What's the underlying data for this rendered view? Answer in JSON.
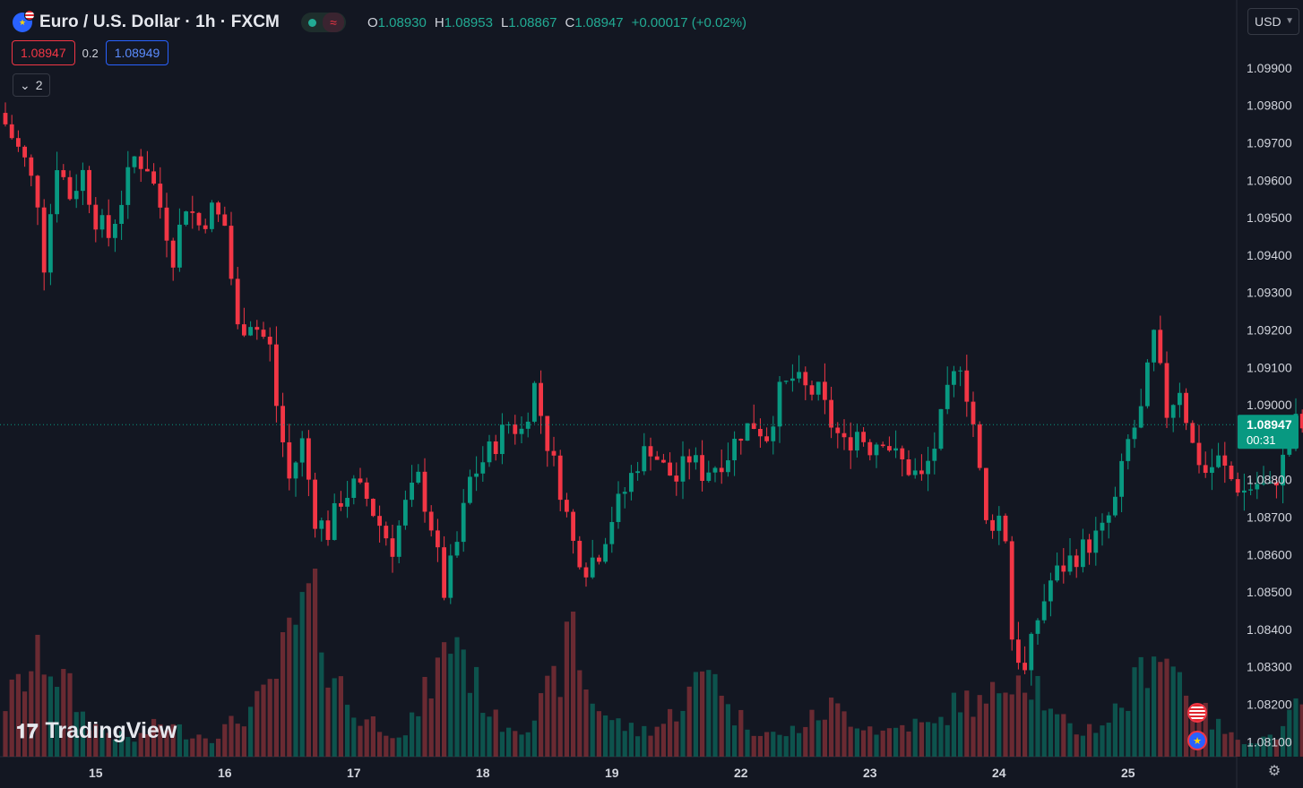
{
  "header": {
    "symbol_title": "Euro / U.S. Dollar · 1h · FXCM",
    "ohlc": {
      "o_label": "O",
      "o": "1.08930",
      "h_label": "H",
      "h": "1.08953",
      "l_label": "L",
      "l": "1.08867",
      "c_label": "C",
      "c": "1.08947",
      "change": "+0.00017 (+0.02%)"
    }
  },
  "quote": {
    "sell": "1.08947",
    "spread": "0.2",
    "buy": "1.08949"
  },
  "indicators_toggle": {
    "count": "2"
  },
  "currency": "USD",
  "price_label": {
    "price": "1.08947",
    "countdown": "00:31"
  },
  "branding": {
    "logo_text": "TradingView"
  },
  "colors": {
    "up": "#089981",
    "down": "#f23645",
    "background": "#131722",
    "grid": "#2a2e39",
    "price_line": "#089981"
  },
  "chart_data": {
    "type": "candlestick",
    "timeframe": "1h",
    "y_axis": {
      "ticks": [
        "1.09900",
        "1.09800",
        "1.09700",
        "1.09600",
        "1.09500",
        "1.09400",
        "1.09300",
        "1.09200",
        "1.09100",
        "1.09000",
        "1.08800",
        "1.08700",
        "1.08600",
        "1.08500",
        "1.08400",
        "1.08300",
        "1.08200",
        "1.08100"
      ],
      "range": [
        1.0806,
        1.0995
      ]
    },
    "x_axis": {
      "ticks": [
        "15",
        "16",
        "17",
        "18",
        "19",
        "22",
        "23",
        "24",
        "25"
      ]
    },
    "current_price": 1.08947,
    "close_path": [
      [
        0,
        1.0975
      ],
      [
        3,
        1.0965
      ],
      [
        5,
        1.0955
      ],
      [
        6,
        1.0938
      ],
      [
        8,
        1.0965
      ],
      [
        10,
        1.0956
      ],
      [
        12,
        1.0962
      ],
      [
        14,
        1.095
      ],
      [
        16,
        1.0945
      ],
      [
        18,
        1.0955
      ],
      [
        20,
        1.0966
      ],
      [
        22,
        1.0964
      ],
      [
        24,
        1.0953
      ],
      [
        26,
        1.094
      ],
      [
        28,
        1.0954
      ],
      [
        30,
        1.0948
      ],
      [
        32,
        1.0952
      ],
      [
        34,
        1.0948
      ],
      [
        36,
        1.092
      ],
      [
        38,
        1.0923
      ],
      [
        40,
        1.0918
      ],
      [
        41,
        1.0915
      ],
      [
        42,
        1.09
      ],
      [
        44,
        1.088
      ],
      [
        46,
        1.089
      ],
      [
        48,
        1.087
      ],
      [
        50,
        1.0866
      ],
      [
        52,
        1.0875
      ],
      [
        54,
        1.0878
      ],
      [
        56,
        1.0875
      ],
      [
        58,
        1.0868
      ],
      [
        60,
        1.0862
      ],
      [
        62,
        1.0873
      ],
      [
        64,
        1.088
      ],
      [
        66,
        1.0868
      ],
      [
        68,
        1.085
      ],
      [
        70,
        1.0863
      ],
      [
        72,
        1.088
      ],
      [
        74,
        1.0885
      ],
      [
        76,
        1.089
      ],
      [
        78,
        1.0895
      ],
      [
        80,
        1.0893
      ],
      [
        82,
        1.0905
      ],
      [
        84,
        1.089
      ],
      [
        86,
        1.0878
      ],
      [
        88,
        1.0863
      ],
      [
        90,
        1.0857
      ],
      [
        92,
        1.0861
      ],
      [
        94,
        1.087
      ],
      [
        96,
        1.0877
      ],
      [
        98,
        1.0885
      ],
      [
        100,
        1.0889
      ],
      [
        102,
        1.0883
      ],
      [
        104,
        1.088
      ],
      [
        106,
        1.0886
      ],
      [
        108,
        1.0882
      ],
      [
        110,
        1.0884
      ],
      [
        112,
        1.0887
      ],
      [
        114,
        1.0893
      ],
      [
        116,
        1.0895
      ],
      [
        118,
        1.0892
      ],
      [
        120,
        1.0903
      ],
      [
        122,
        1.0907
      ],
      [
        124,
        1.0904
      ],
      [
        126,
        1.0903
      ],
      [
        128,
        1.0895
      ],
      [
        130,
        1.0889
      ],
      [
        132,
        1.0893
      ],
      [
        134,
        1.0889
      ],
      [
        136,
        1.0892
      ],
      [
        138,
        1.0886
      ],
      [
        140,
        1.0883
      ],
      [
        142,
        1.088
      ],
      [
        144,
        1.0889
      ],
      [
        146,
        1.0902
      ],
      [
        148,
        1.0912
      ],
      [
        150,
        1.0895
      ],
      [
        152,
        1.0868
      ],
      [
        154,
        1.087
      ],
      [
        155,
        1.0865
      ],
      [
        156,
        1.0838
      ],
      [
        158,
        1.0828
      ],
      [
        160,
        1.0843
      ],
      [
        162,
        1.0853
      ],
      [
        164,
        1.0857
      ],
      [
        166,
        1.086
      ],
      [
        168,
        1.0863
      ],
      [
        170,
        1.0866
      ],
      [
        172,
        1.0874
      ],
      [
        174,
        1.089
      ],
      [
        176,
        1.0898
      ],
      [
        178,
        1.0918
      ],
      [
        180,
        1.0898
      ],
      [
        182,
        1.0905
      ],
      [
        184,
        1.0889
      ],
      [
        186,
        1.0882
      ],
      [
        188,
        1.0885
      ],
      [
        190,
        1.088
      ],
      [
        192,
        1.0877
      ],
      [
        194,
        1.0879
      ],
      [
        196,
        1.0877
      ],
      [
        198,
        1.0885
      ],
      [
        200,
        1.0895
      ],
      [
        202,
        1.0893
      ],
      [
        203,
        1.0895
      ]
    ],
    "volume_profile": [
      [
        0,
        0.33
      ],
      [
        6,
        0.62
      ],
      [
        10,
        0.4
      ],
      [
        12,
        0.25
      ],
      [
        14,
        0.18
      ],
      [
        18,
        0.12
      ],
      [
        20,
        0.1
      ],
      [
        24,
        0.2
      ],
      [
        28,
        0.15
      ],
      [
        32,
        0.12
      ],
      [
        36,
        0.22
      ],
      [
        40,
        0.35
      ],
      [
        42,
        0.5
      ],
      [
        44,
        0.7
      ],
      [
        48,
        1.0
      ],
      [
        50,
        0.6
      ],
      [
        54,
        0.25
      ],
      [
        58,
        0.2
      ],
      [
        62,
        0.12
      ],
      [
        64,
        0.3
      ],
      [
        66,
        0.45
      ],
      [
        70,
        0.78
      ],
      [
        72,
        0.5
      ],
      [
        76,
        0.22
      ],
      [
        80,
        0.18
      ],
      [
        82,
        0.25
      ],
      [
        86,
        0.5
      ],
      [
        88,
        0.78
      ],
      [
        90,
        0.4
      ],
      [
        94,
        0.22
      ],
      [
        98,
        0.15
      ],
      [
        102,
        0.2
      ],
      [
        106,
        0.38
      ],
      [
        110,
        0.6
      ],
      [
        112,
        0.28
      ],
      [
        116,
        0.18
      ],
      [
        120,
        0.12
      ],
      [
        124,
        0.2
      ],
      [
        128,
        0.3
      ],
      [
        132,
        0.22
      ],
      [
        136,
        0.15
      ],
      [
        140,
        0.2
      ],
      [
        144,
        0.18
      ],
      [
        148,
        0.35
      ],
      [
        152,
        0.3
      ],
      [
        156,
        0.55
      ],
      [
        160,
        0.45
      ],
      [
        162,
        0.25
      ],
      [
        166,
        0.15
      ],
      [
        170,
        0.2
      ],
      [
        174,
        0.35
      ],
      [
        176,
        0.5
      ],
      [
        178,
        0.7
      ],
      [
        182,
        0.5
      ],
      [
        186,
        0.25
      ],
      [
        190,
        0.12
      ],
      [
        194,
        0.1
      ],
      [
        198,
        0.15
      ],
      [
        200,
        0.3
      ],
      [
        203,
        0.4
      ]
    ]
  }
}
